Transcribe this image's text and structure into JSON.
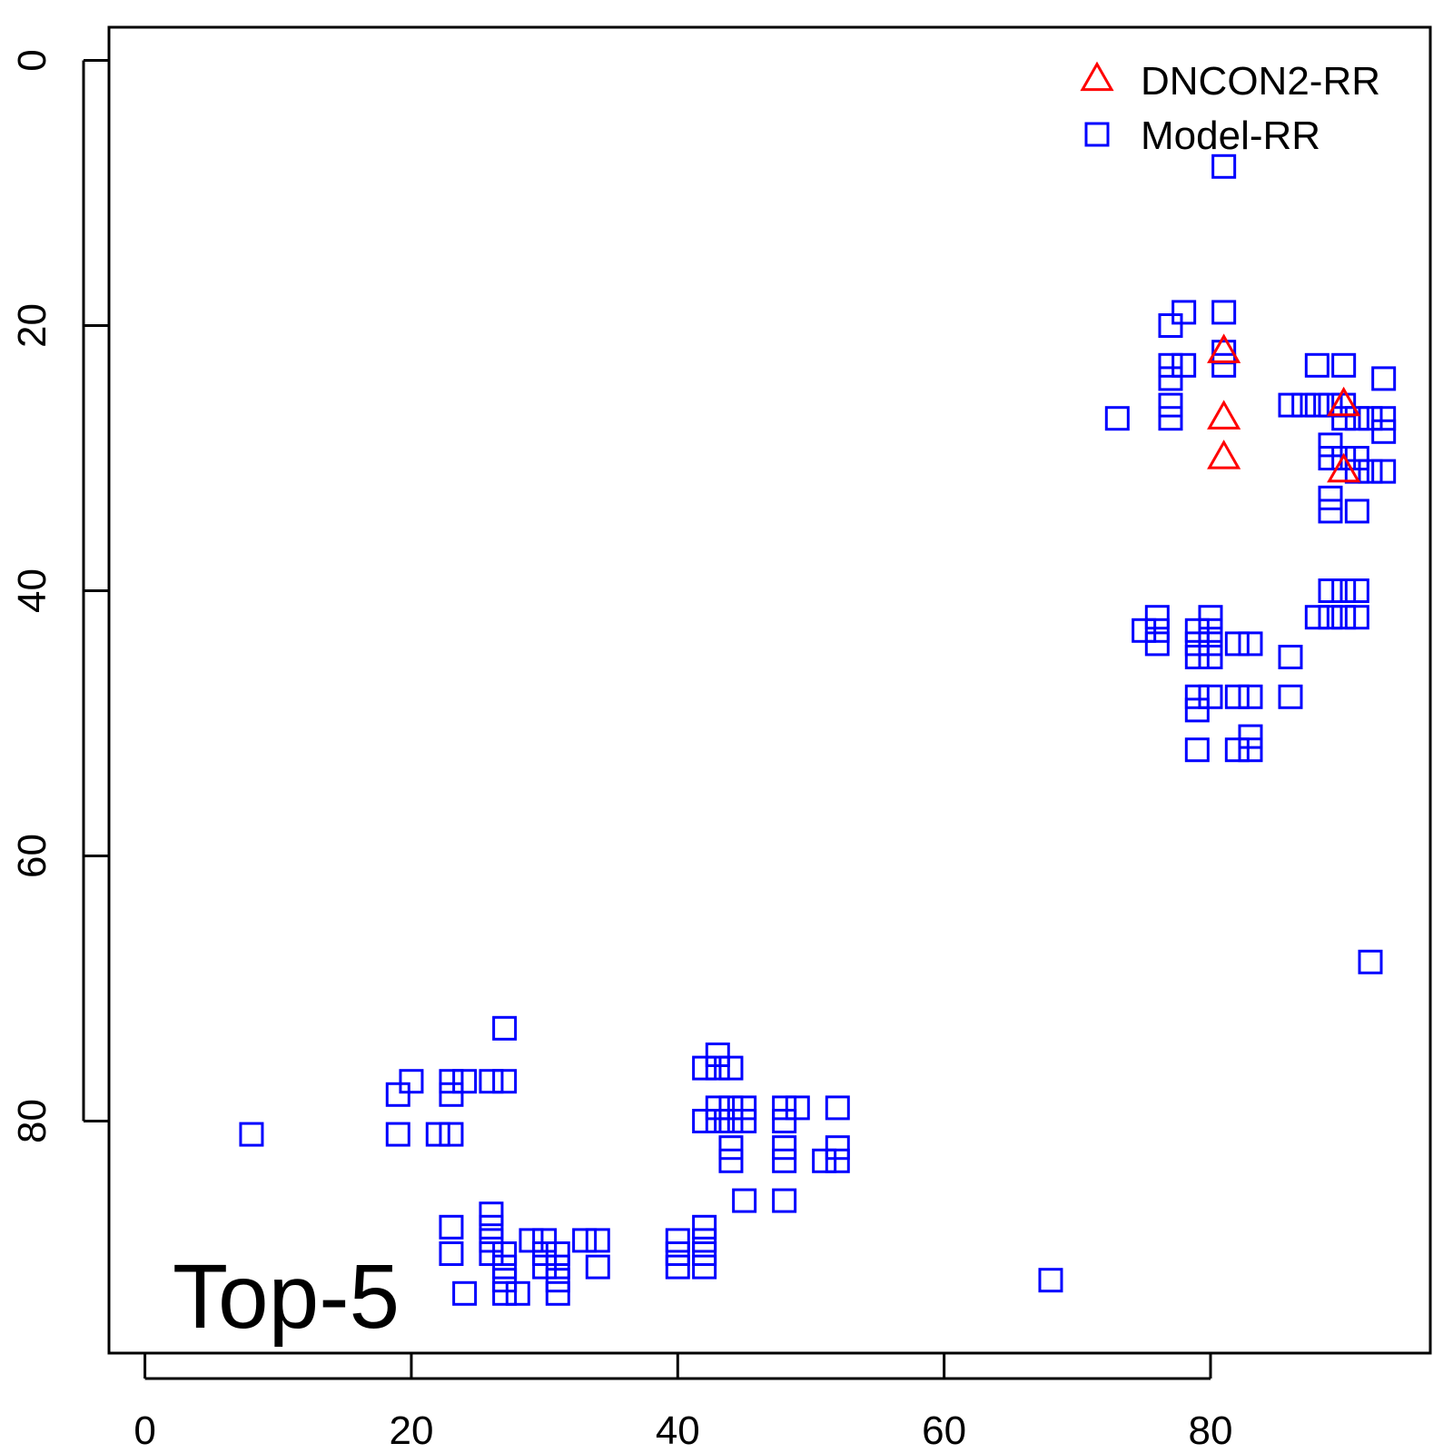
{
  "chart_data": {
    "type": "scatter",
    "title": "",
    "xlabel": "",
    "ylabel": "",
    "xlim": [
      -2.7,
      96.5
    ],
    "ylim": [
      97.5,
      -2.5
    ],
    "y_reversed": true,
    "x_ticks": [
      0,
      20,
      40,
      60,
      80
    ],
    "y_ticks": [
      0,
      20,
      40,
      60,
      80
    ],
    "x_tick_labels": [
      "0",
      "20",
      "40",
      "60",
      "80"
    ],
    "y_tick_labels": [
      "0",
      "20",
      "40",
      "60",
      "80"
    ],
    "grid": false,
    "legend_position": "top-right",
    "annotation": "Top-5",
    "series": [
      {
        "name": "DNCON2-RR",
        "marker": "triangle-open",
        "color": "#ff0000",
        "points": [
          [
            81,
            22
          ],
          [
            81,
            27
          ],
          [
            81,
            30
          ],
          [
            90,
            26
          ],
          [
            90,
            31
          ]
        ]
      },
      {
        "name": "Model-RR",
        "marker": "square-open",
        "color": "#0000ff",
        "points": [
          [
            81,
            8
          ],
          [
            78,
            19
          ],
          [
            81,
            19
          ],
          [
            77,
            20
          ],
          [
            81,
            22
          ],
          [
            81,
            23
          ],
          [
            77,
            23
          ],
          [
            78,
            23
          ],
          [
            77,
            24
          ],
          [
            88,
            23
          ],
          [
            90,
            23
          ],
          [
            93,
            24
          ],
          [
            77,
            26
          ],
          [
            77,
            27
          ],
          [
            73,
            27
          ],
          [
            86,
            26
          ],
          [
            87,
            26
          ],
          [
            88,
            26
          ],
          [
            89,
            26
          ],
          [
            90,
            26
          ],
          [
            90,
            27
          ],
          [
            91,
            27
          ],
          [
            92,
            27
          ],
          [
            93,
            27
          ],
          [
            93,
            28
          ],
          [
            89,
            29
          ],
          [
            89,
            30
          ],
          [
            90,
            30
          ],
          [
            91,
            30
          ],
          [
            91,
            31
          ],
          [
            92,
            31
          ],
          [
            93,
            31
          ],
          [
            89,
            33
          ],
          [
            89,
            34
          ],
          [
            91,
            34
          ],
          [
            89,
            40
          ],
          [
            90,
            40
          ],
          [
            91,
            40
          ],
          [
            88,
            42
          ],
          [
            89,
            42
          ],
          [
            90,
            42
          ],
          [
            91,
            42
          ],
          [
            76,
            42
          ],
          [
            75,
            43
          ],
          [
            76,
            43
          ],
          [
            76,
            44
          ],
          [
            80,
            42
          ],
          [
            79,
            43
          ],
          [
            80,
            43
          ],
          [
            79,
            44
          ],
          [
            80,
            44
          ],
          [
            79,
            45
          ],
          [
            80,
            45
          ],
          [
            82,
            44
          ],
          [
            83,
            44
          ],
          [
            86,
            45
          ],
          [
            79,
            48
          ],
          [
            80,
            48
          ],
          [
            82,
            48
          ],
          [
            83,
            48
          ],
          [
            86,
            48
          ],
          [
            79,
            49
          ],
          [
            83,
            51
          ],
          [
            82,
            52
          ],
          [
            83,
            52
          ],
          [
            79,
            52
          ],
          [
            92,
            68
          ],
          [
            27,
            73
          ],
          [
            43,
            75
          ],
          [
            42,
            76
          ],
          [
            43,
            76
          ],
          [
            44,
            76
          ],
          [
            20,
            77
          ],
          [
            23,
            77
          ],
          [
            24,
            77
          ],
          [
            26,
            77
          ],
          [
            27,
            77
          ],
          [
            19,
            78
          ],
          [
            23,
            78
          ],
          [
            43,
            79
          ],
          [
            44,
            79
          ],
          [
            45,
            79
          ],
          [
            48,
            79
          ],
          [
            49,
            79
          ],
          [
            52,
            79
          ],
          [
            42,
            80
          ],
          [
            43,
            80
          ],
          [
            44,
            80
          ],
          [
            45,
            80
          ],
          [
            48,
            80
          ],
          [
            8,
            81
          ],
          [
            19,
            81
          ],
          [
            22,
            81
          ],
          [
            23,
            81
          ],
          [
            44,
            82
          ],
          [
            48,
            82
          ],
          [
            52,
            82
          ],
          [
            44,
            83
          ],
          [
            48,
            83
          ],
          [
            51,
            83
          ],
          [
            52,
            83
          ],
          [
            45,
            86
          ],
          [
            48,
            86
          ],
          [
            26,
            87
          ],
          [
            23,
            88
          ],
          [
            26,
            88
          ],
          [
            42,
            88
          ],
          [
            26,
            89
          ],
          [
            29,
            89
          ],
          [
            30,
            89
          ],
          [
            33,
            89
          ],
          [
            34,
            89
          ],
          [
            40,
            89
          ],
          [
            42,
            89
          ],
          [
            23,
            90
          ],
          [
            26,
            90
          ],
          [
            27,
            90
          ],
          [
            30,
            90
          ],
          [
            31,
            90
          ],
          [
            40,
            90
          ],
          [
            42,
            90
          ],
          [
            27,
            91
          ],
          [
            30,
            91
          ],
          [
            31,
            91
          ],
          [
            34,
            91
          ],
          [
            40,
            91
          ],
          [
            42,
            91
          ],
          [
            27,
            92
          ],
          [
            31,
            92
          ],
          [
            68,
            92
          ],
          [
            24,
            93
          ],
          [
            27,
            93
          ],
          [
            28,
            93
          ],
          [
            31,
            93
          ]
        ]
      }
    ]
  }
}
